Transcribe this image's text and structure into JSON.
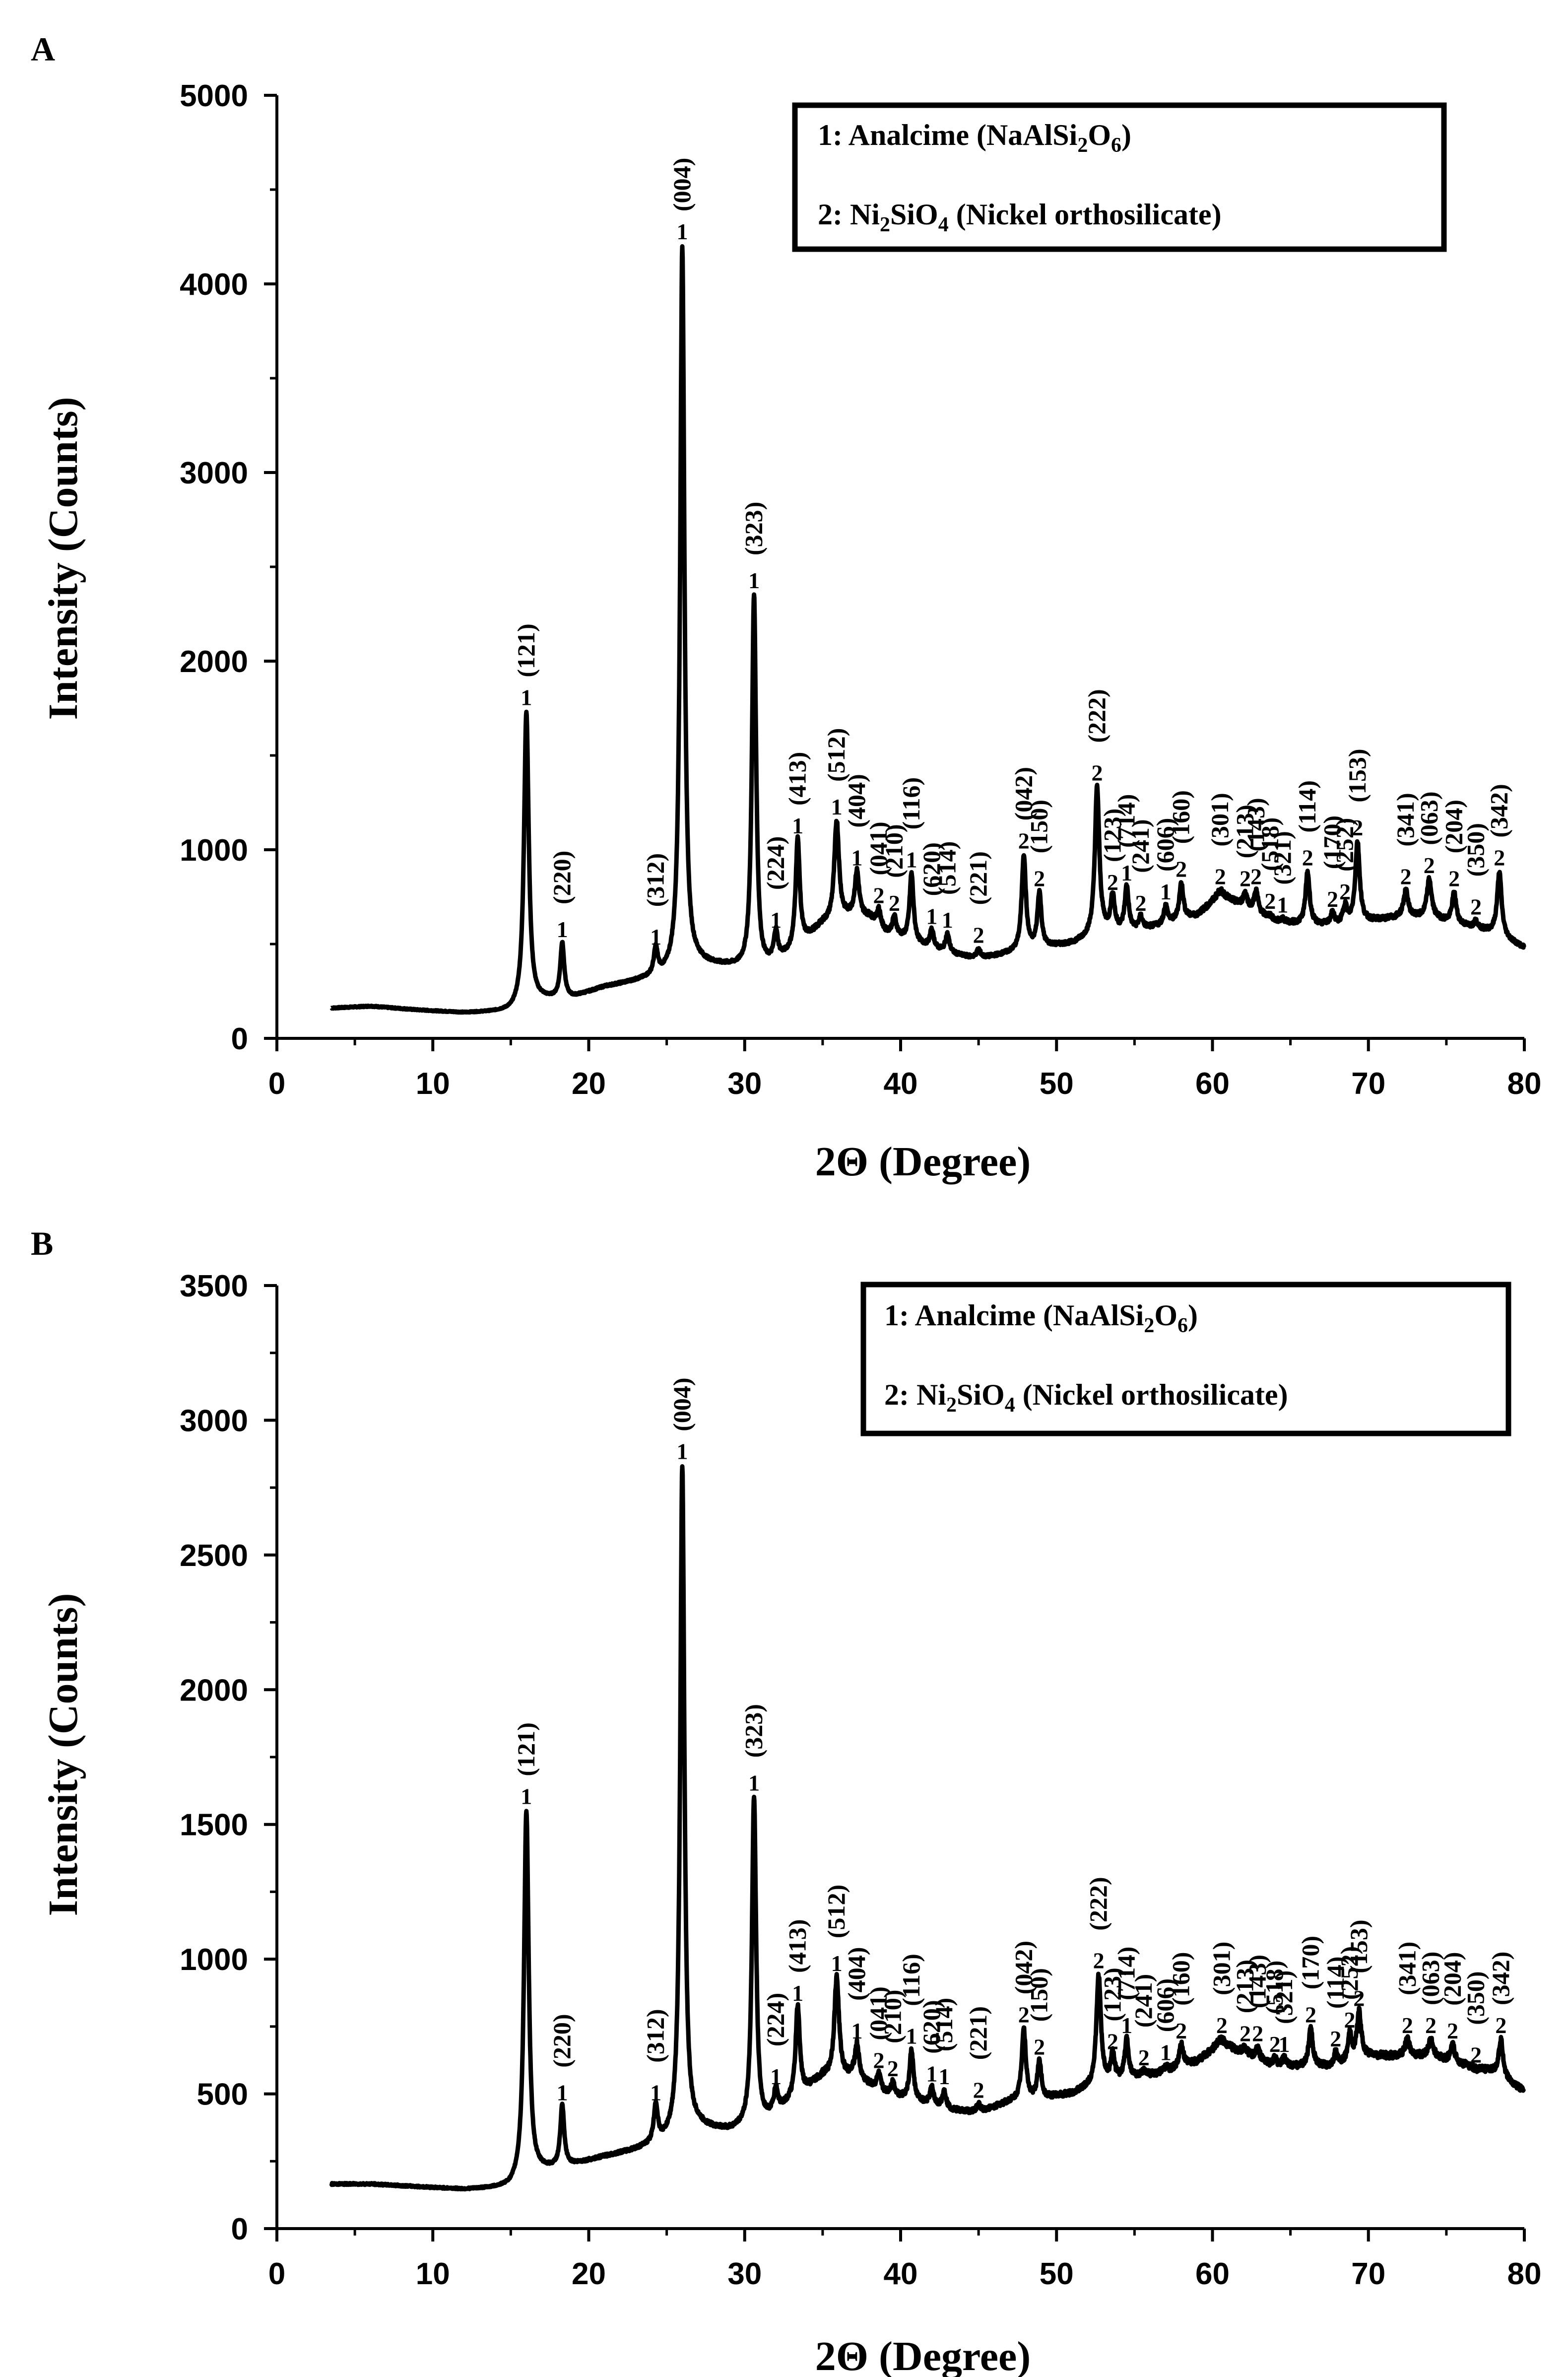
{
  "chart_data": [
    {
      "panel": "A",
      "type": "line",
      "xlabel": "2Θ (Degree)",
      "ylabel": "Intensity (Counts)",
      "xlim": [
        0,
        80
      ],
      "ylim": [
        0,
        5000
      ],
      "xticks": [
        0,
        10,
        20,
        30,
        40,
        50,
        60,
        70,
        80
      ],
      "yticks": [
        0,
        1000,
        2000,
        3000,
        4000,
        5000
      ],
      "legend": {
        "position": "top-right",
        "line1": {
          "prefix": "1: Analcime (NaAlSi",
          "sub1": "2",
          "mid": "O",
          "sub2": "6",
          "suffix": ")"
        },
        "line2": {
          "prefix": "2: Ni",
          "sub1": "2",
          "mid": "SiO",
          "sub2": "4",
          "suffix": " (Nickel orthosilicate)"
        }
      },
      "baseline": [
        [
          3.5,
          160
        ],
        [
          6,
          170
        ],
        [
          9,
          150
        ],
        [
          12,
          135
        ],
        [
          15,
          140
        ],
        [
          17,
          200
        ],
        [
          19,
          215
        ],
        [
          21,
          270
        ],
        [
          23,
          300
        ],
        [
          25,
          330
        ],
        [
          27,
          390
        ],
        [
          29,
          375
        ],
        [
          31,
          350
        ],
        [
          33,
          450
        ],
        [
          35,
          600
        ],
        [
          37,
          650
        ],
        [
          38,
          640
        ],
        [
          39,
          560
        ],
        [
          41,
          500
        ],
        [
          43,
          450
        ],
        [
          45,
          420
        ],
        [
          47,
          450
        ],
        [
          49,
          480
        ],
        [
          51,
          500
        ],
        [
          53,
          560
        ],
        [
          55,
          570
        ],
        [
          57,
          600
        ],
        [
          59,
          650
        ],
        [
          60.5,
          750
        ],
        [
          62,
          700
        ],
        [
          64,
          620
        ],
        [
          66,
          600
        ],
        [
          68,
          600
        ],
        [
          70,
          620
        ],
        [
          72,
          640
        ],
        [
          74,
          640
        ],
        [
          76,
          600
        ],
        [
          78,
          560
        ],
        [
          80,
          480
        ]
      ],
      "peaks": [
        {
          "x": 16.0,
          "y": 1730,
          "w": 0.18,
          "label": "1",
          "hkl": "(121)"
        },
        {
          "x": 18.3,
          "y": 500,
          "w": 0.15,
          "label": "1",
          "hkl": "(220)"
        },
        {
          "x": 24.3,
          "y": 460,
          "w": 0.15,
          "label": "1",
          "hkl": "(312)"
        },
        {
          "x": 26.0,
          "y": 4200,
          "w": 0.16,
          "label": "1",
          "hkl": "(004)"
        },
        {
          "x": 30.6,
          "y": 2350,
          "w": 0.16,
          "label": "1",
          "hkl": "(323)"
        },
        {
          "x": 32.0,
          "y": 550,
          "w": 0.15,
          "label": "1",
          "hkl": "(224)"
        },
        {
          "x": 33.4,
          "y": 1050,
          "w": 0.16,
          "label": "1",
          "hkl": "(413)"
        },
        {
          "x": 35.9,
          "y": 1150,
          "w": 0.18,
          "label": "1",
          "hkl": "(512)"
        },
        {
          "x": 37.2,
          "y": 880,
          "w": 0.16,
          "label": "1",
          "hkl": "(404)"
        },
        {
          "x": 38.6,
          "y": 680,
          "w": 0.15,
          "label": "2",
          "hkl": "(041)"
        },
        {
          "x": 39.6,
          "y": 640,
          "w": 0.15,
          "label": "2",
          "hkl": "(210)"
        },
        {
          "x": 40.7,
          "y": 870,
          "w": 0.15,
          "label": "1",
          "hkl": "(116)"
        },
        {
          "x": 42.0,
          "y": 570,
          "w": 0.15,
          "label": "1",
          "hkl": "(620)"
        },
        {
          "x": 43.0,
          "y": 550,
          "w": 0.15,
          "label": "1",
          "hkl": "(514)"
        },
        {
          "x": 45.0,
          "y": 470,
          "w": 0.15,
          "label": "2",
          "hkl": "(221)"
        },
        {
          "x": 47.9,
          "y": 970,
          "w": 0.16,
          "label": "2",
          "hkl": "(042)"
        },
        {
          "x": 48.9,
          "y": 770,
          "w": 0.15,
          "label": "2",
          "hkl": "(150)"
        },
        {
          "x": 52.6,
          "y": 1330,
          "w": 0.17,
          "label": "2",
          "hkl": "(222)"
        },
        {
          "x": 53.6,
          "y": 750,
          "w": 0.15,
          "label": "2",
          "hkl": "(123)"
        },
        {
          "x": 54.5,
          "y": 800,
          "w": 0.15,
          "label": "1",
          "hkl": "(714)"
        },
        {
          "x": 55.4,
          "y": 640,
          "w": 0.15,
          "label": "2",
          "hkl": "(241)"
        },
        {
          "x": 57.0,
          "y": 700,
          "w": 0.15,
          "label": "1",
          "hkl": "(606)"
        },
        {
          "x": 58.0,
          "y": 820,
          "w": 0.16,
          "label": "2",
          "hkl": "(160)"
        },
        {
          "x": 60.5,
          "y": 780,
          "w": 0.4,
          "label": "2",
          "hkl": "(301)"
        },
        {
          "x": 62.1,
          "y": 770,
          "w": 0.15,
          "label": "2",
          "hkl": "(213)"
        },
        {
          "x": 62.8,
          "y": 780,
          "w": 0.15,
          "label": "2",
          "hkl": "(143)"
        },
        {
          "x": 63.7,
          "y": 650,
          "w": 0.15,
          "label": "2",
          "hkl": "(518)"
        },
        {
          "x": 64.5,
          "y": 630,
          "w": 0.15,
          "label": "1",
          "hkl": "(321)"
        },
        {
          "x": 66.1,
          "y": 880,
          "w": 0.16,
          "label": "2",
          "hkl": "(114)"
        },
        {
          "x": 67.7,
          "y": 660,
          "w": 0.15,
          "label": "2",
          "hkl": "(170)"
        },
        {
          "x": 68.5,
          "y": 700,
          "w": 0.15,
          "label": "2",
          "hkl": "(252)"
        },
        {
          "x": 69.3,
          "y": 1040,
          "w": 0.17,
          "label": "2",
          "hkl": "(153)"
        },
        {
          "x": 72.4,
          "y": 780,
          "w": 0.18,
          "label": "2",
          "hkl": "(341)"
        },
        {
          "x": 73.9,
          "y": 840,
          "w": 0.18,
          "label": "2",
          "hkl": "(063)"
        },
        {
          "x": 75.5,
          "y": 770,
          "w": 0.16,
          "label": "2",
          "hkl": "(204)"
        },
        {
          "x": 76.9,
          "y": 620,
          "w": 0.15,
          "label": "2",
          "hkl": "(350)"
        },
        {
          "x": 78.4,
          "y": 880,
          "w": 0.17,
          "label": "2",
          "hkl": "(342)"
        }
      ]
    },
    {
      "panel": "B",
      "type": "line",
      "xlabel": "2Θ (Degree)",
      "ylabel": "Intensity (Counts)",
      "xlim": [
        0,
        80
      ],
      "ylim": [
        0,
        3500
      ],
      "xticks": [
        0,
        10,
        20,
        30,
        40,
        50,
        60,
        70,
        80
      ],
      "yticks": [
        0,
        500,
        1000,
        1500,
        2000,
        2500,
        3000,
        3500
      ],
      "legend": {
        "position": "top-right",
        "line1": {
          "prefix": "1: Analcime (NaAlSi",
          "sub1": "2",
          "mid": "O",
          "sub2": "6",
          "suffix": ")"
        },
        "line2": {
          "prefix": "2: Ni",
          "sub1": "2",
          "mid": "SiO",
          "sub2": "4",
          "suffix": " (Nickel orthosilicate)"
        }
      },
      "baseline": [
        [
          3.5,
          165
        ],
        [
          6,
          165
        ],
        [
          9,
          155
        ],
        [
          12,
          145
        ],
        [
          15,
          150
        ],
        [
          17,
          210
        ],
        [
          19,
          235
        ],
        [
          21,
          265
        ],
        [
          23,
          290
        ],
        [
          25,
          320
        ],
        [
          27,
          370
        ],
        [
          29,
          360
        ],
        [
          31,
          380
        ],
        [
          33,
          470
        ],
        [
          35,
          560
        ],
        [
          37,
          560
        ],
        [
          39,
          500
        ],
        [
          41,
          470
        ],
        [
          43,
          440
        ],
        [
          45,
          430
        ],
        [
          47,
          470
        ],
        [
          49,
          480
        ],
        [
          51,
          500
        ],
        [
          53,
          540
        ],
        [
          55,
          560
        ],
        [
          57,
          580
        ],
        [
          59,
          620
        ],
        [
          60.5,
          680
        ],
        [
          62,
          650
        ],
        [
          64,
          600
        ],
        [
          66,
          600
        ],
        [
          68,
          600
        ],
        [
          70,
          640
        ],
        [
          72,
          640
        ],
        [
          74,
          640
        ],
        [
          76,
          610
        ],
        [
          78,
          580
        ],
        [
          80,
          510
        ]
      ],
      "peaks": [
        {
          "x": 16.0,
          "y": 1550,
          "w": 0.18,
          "label": "1",
          "hkl": "(121)"
        },
        {
          "x": 18.3,
          "y": 450,
          "w": 0.15,
          "label": "1",
          "hkl": "(220)"
        },
        {
          "x": 24.3,
          "y": 450,
          "w": 0.15,
          "label": "1",
          "hkl": "(312)"
        },
        {
          "x": 26.0,
          "y": 2830,
          "w": 0.16,
          "label": "1",
          "hkl": "(004)"
        },
        {
          "x": 30.6,
          "y": 1600,
          "w": 0.16,
          "label": "1",
          "hkl": "(323)"
        },
        {
          "x": 32.0,
          "y": 510,
          "w": 0.15,
          "label": "1",
          "hkl": "(224)"
        },
        {
          "x": 33.4,
          "y": 820,
          "w": 0.16,
          "label": "1",
          "hkl": "(413)"
        },
        {
          "x": 35.9,
          "y": 930,
          "w": 0.18,
          "label": "1",
          "hkl": "(512)"
        },
        {
          "x": 37.2,
          "y": 680,
          "w": 0.16,
          "label": "1",
          "hkl": "(404)"
        },
        {
          "x": 38.6,
          "y": 570,
          "w": 0.15,
          "label": "2",
          "hkl": "(041)"
        },
        {
          "x": 39.5,
          "y": 540,
          "w": 0.15,
          "label": "2",
          "hkl": "(210)"
        },
        {
          "x": 40.7,
          "y": 660,
          "w": 0.15,
          "label": "1",
          "hkl": "(116)"
        },
        {
          "x": 42.0,
          "y": 520,
          "w": 0.15,
          "label": "1",
          "hkl": "(620)"
        },
        {
          "x": 42.8,
          "y": 510,
          "w": 0.15,
          "label": "1",
          "hkl": "(514)"
        },
        {
          "x": 45.0,
          "y": 460,
          "w": 0.15,
          "label": "2",
          "hkl": "(221)"
        },
        {
          "x": 47.9,
          "y": 740,
          "w": 0.16,
          "label": "2",
          "hkl": "(042)"
        },
        {
          "x": 48.9,
          "y": 620,
          "w": 0.15,
          "label": "2",
          "hkl": "(150)"
        },
        {
          "x": 52.7,
          "y": 940,
          "w": 0.17,
          "label": "2",
          "hkl": "(222)"
        },
        {
          "x": 53.6,
          "y": 640,
          "w": 0.15,
          "label": "2",
          "hkl": "(123)"
        },
        {
          "x": 54.5,
          "y": 700,
          "w": 0.15,
          "label": "1",
          "hkl": "(714)"
        },
        {
          "x": 55.6,
          "y": 580,
          "w": 0.15,
          "label": "2",
          "hkl": "(241)"
        },
        {
          "x": 57.0,
          "y": 600,
          "w": 0.15,
          "label": "1",
          "hkl": "(606)"
        },
        {
          "x": 58.0,
          "y": 680,
          "w": 0.16,
          "label": "2",
          "hkl": "(160)"
        },
        {
          "x": 60.6,
          "y": 700,
          "w": 0.4,
          "label": "2",
          "hkl": "(301)"
        },
        {
          "x": 62.1,
          "y": 670,
          "w": 0.15,
          "label": "2",
          "hkl": "(213)"
        },
        {
          "x": 62.9,
          "y": 670,
          "w": 0.15,
          "label": "2",
          "hkl": "(143)"
        },
        {
          "x": 64.0,
          "y": 630,
          "w": 0.15,
          "label": "2",
          "hkl": "(518)"
        },
        {
          "x": 64.6,
          "y": 630,
          "w": 0.15,
          "label": "1",
          "hkl": "(321)"
        },
        {
          "x": 66.3,
          "y": 740,
          "w": 0.16,
          "label": "2",
          "hkl": "(170)"
        },
        {
          "x": 67.9,
          "y": 650,
          "w": 0.15,
          "label": "2",
          "hkl": "(114)"
        },
        {
          "x": 68.8,
          "y": 720,
          "w": 0.15,
          "label": "2",
          "hkl": "(252)"
        },
        {
          "x": 69.4,
          "y": 800,
          "w": 0.17,
          "label": "2",
          "hkl": "(153)"
        },
        {
          "x": 72.5,
          "y": 700,
          "w": 0.18,
          "label": "2",
          "hkl": "(341)"
        },
        {
          "x": 74.0,
          "y": 700,
          "w": 0.18,
          "label": "2",
          "hkl": "(063)"
        },
        {
          "x": 75.4,
          "y": 680,
          "w": 0.16,
          "label": "2",
          "hkl": "(204)"
        },
        {
          "x": 76.9,
          "y": 590,
          "w": 0.15,
          "label": "2",
          "hkl": "(350)"
        },
        {
          "x": 78.5,
          "y": 700,
          "w": 0.17,
          "label": "2",
          "hkl": "(342)"
        }
      ]
    }
  ]
}
